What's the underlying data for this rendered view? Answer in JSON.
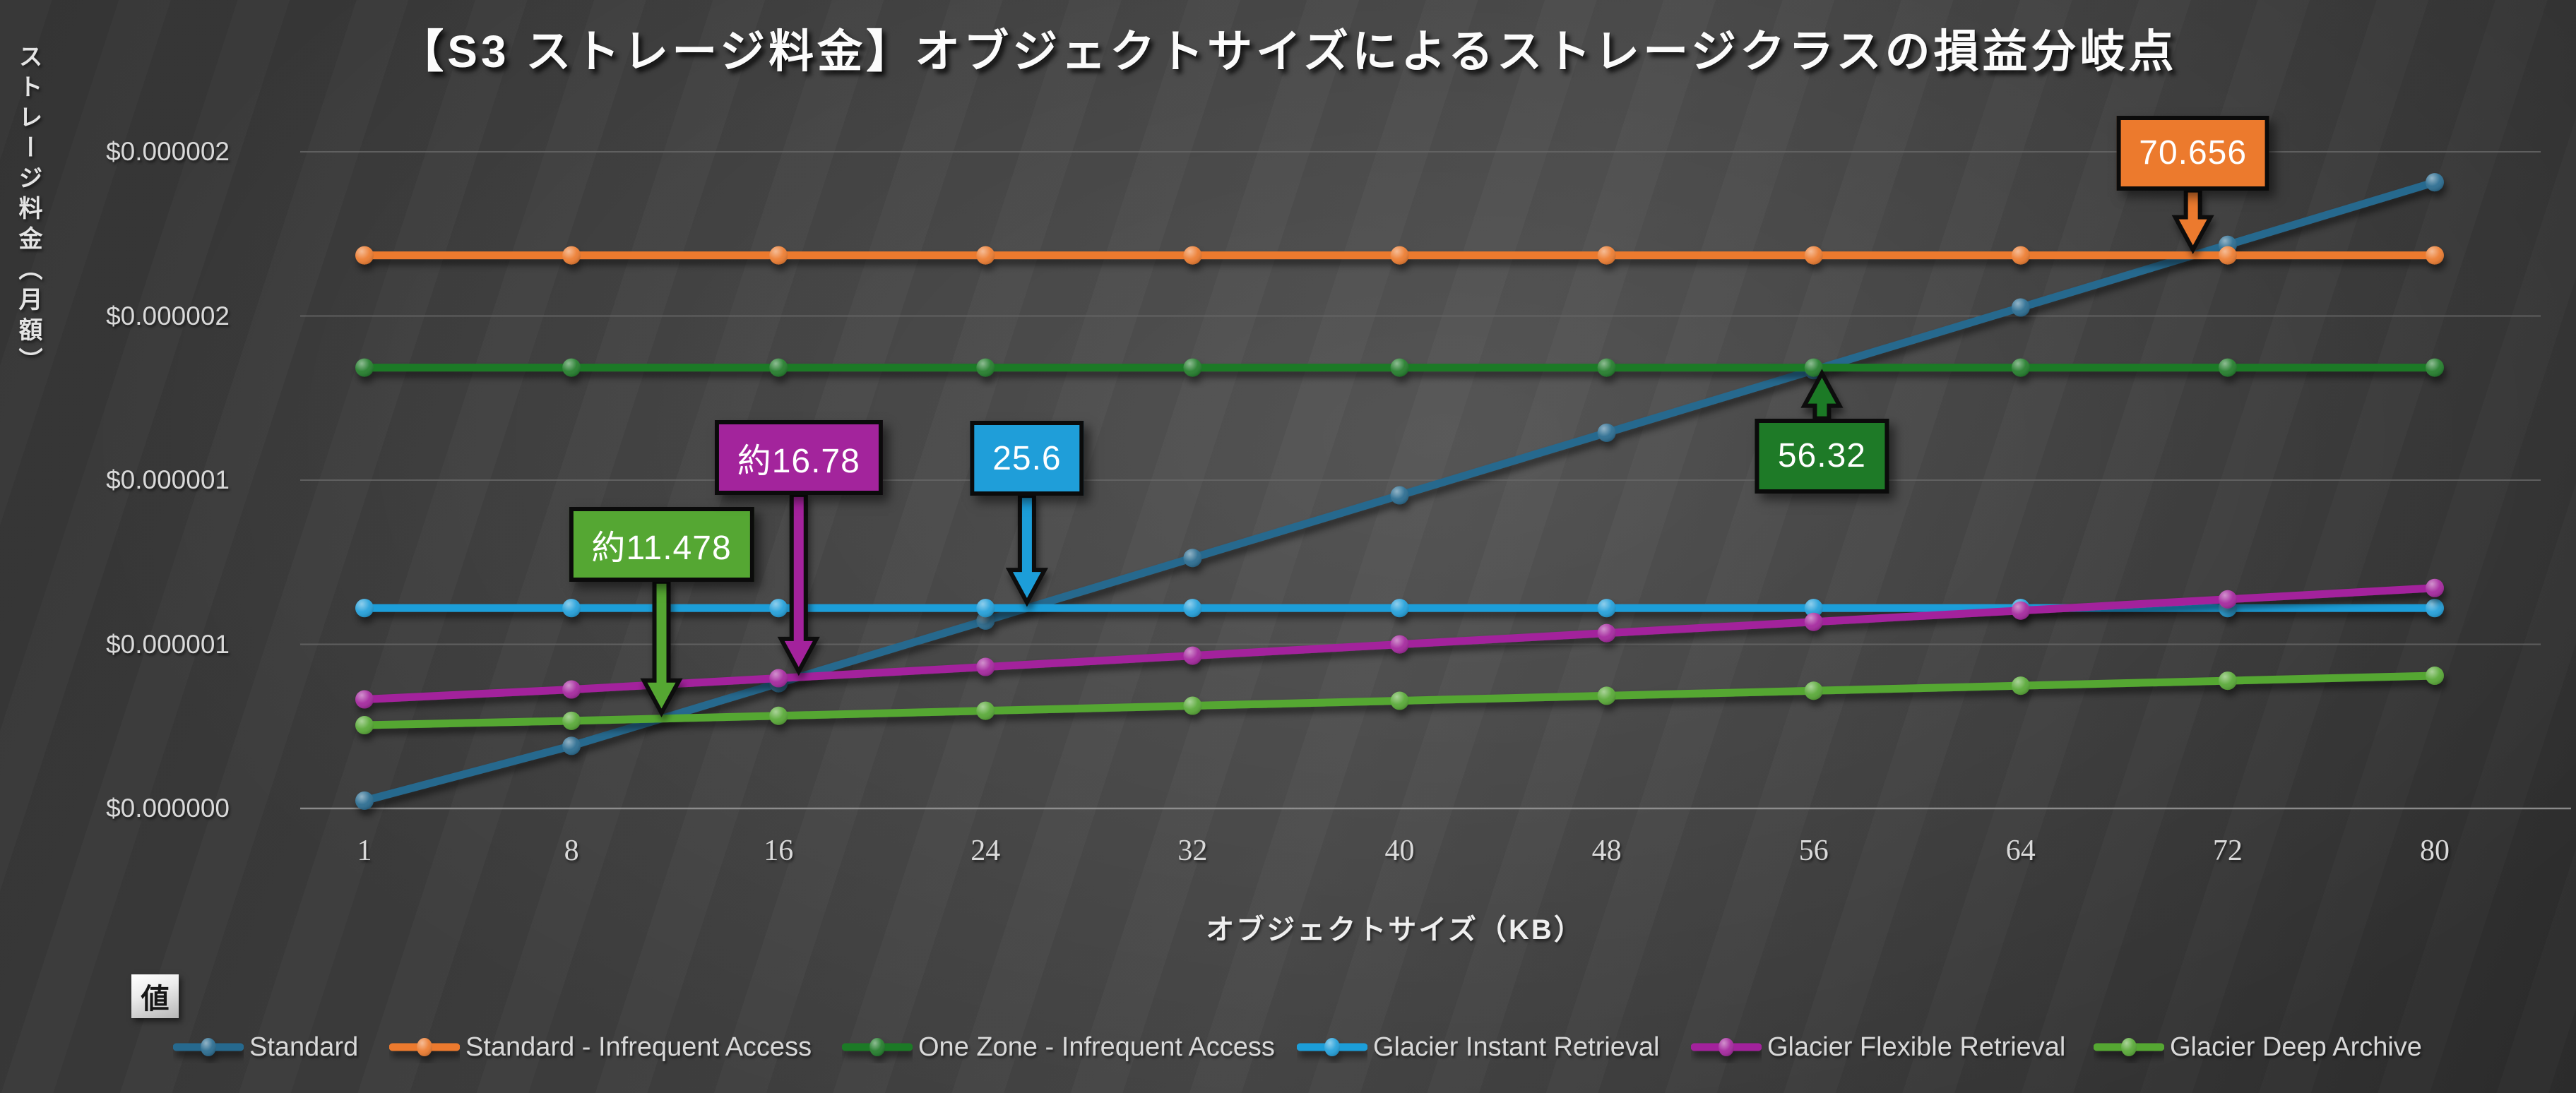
{
  "title": "【S3 ストレージ料金】オブジェクトサイズによるストレージクラスの損益分岐点",
  "y_axis": {
    "title": "ストレージ料金（月額）",
    "ticks": {
      "labels_top_to_bottom": [
        "$0.000002",
        "$0.000002",
        "$0.000001",
        "$0.000001",
        "$0.000000"
      ],
      "values_top_to_bottom": [
        2e-06,
        1.5e-06,
        1e-06,
        5e-07,
        0
      ]
    }
  },
  "x_axis": {
    "title": "オブジェクトサイズ（KB）",
    "tick_labels": [
      "1",
      "8",
      "16",
      "24",
      "32",
      "40",
      "48",
      "56",
      "64",
      "72",
      "80"
    ]
  },
  "value_badge": {
    "label": "値"
  },
  "colors": {
    "background_dark": "#2c2c2c",
    "gridline": "#666666",
    "axis_line": "#9a9a9a",
    "tick_text": "#d9d9d9",
    "title_text": "#fbfbfb"
  },
  "chart_data": {
    "type": "line",
    "title": "【S3 ストレージ料金】オブジェクトサイズによるストレージクラスの損益分岐点",
    "xlabel": "オブジェクトサイズ（KB）",
    "ylabel": "ストレージ料金（月額）",
    "x_categories": [
      1,
      8,
      16,
      24,
      32,
      40,
      48,
      56,
      64,
      72,
      80
    ],
    "ylim": [
      0,
      2e-06
    ],
    "grid": true,
    "legend_position": "bottom",
    "series": [
      {
        "name": "Standard",
        "color": "#26698E",
        "values": [
          2.3842e-08,
          1.9073e-07,
          3.8147e-07,
          5.722e-07,
          7.6294e-07,
          9.5367e-07,
          1.1444e-06,
          1.3351e-06,
          1.5259e-06,
          1.7166e-06,
          1.9073e-06
        ]
      },
      {
        "name": "Standard - Infrequent Access",
        "color": "#EC7A2D",
        "values": [
          1.68457e-06,
          1.68457e-06,
          1.68457e-06,
          1.68457e-06,
          1.68457e-06,
          1.68457e-06,
          1.68457e-06,
          1.68457e-06,
          1.68457e-06,
          1.68457e-06,
          1.68457e-06
        ]
      },
      {
        "name": "One Zone - Infrequent Access",
        "color": "#1E7A27",
        "values": [
          1.34277e-06,
          1.34277e-06,
          1.34277e-06,
          1.34277e-06,
          1.34277e-06,
          1.34277e-06,
          1.34277e-06,
          1.34277e-06,
          1.34277e-06,
          1.34277e-06,
          1.34277e-06
        ]
      },
      {
        "name": "Glacier Instant Retrieval",
        "color": "#1F9ED9",
        "values": [
          6.10352e-07,
          6.10352e-07,
          6.10352e-07,
          6.10352e-07,
          6.10352e-07,
          6.10352e-07,
          6.10352e-07,
          6.10352e-07,
          6.10352e-07,
          6.10352e-07,
          6.10352e-07
        ]
      },
      {
        "name": "Glacier Flexible Retrieval",
        "color": "#A3249C",
        "values": [
          3.3236e-07,
          3.624e-07,
          3.9673e-07,
          4.3106e-07,
          4.6539e-07,
          4.9973e-07,
          5.3406e-07,
          5.6839e-07,
          6.0272e-07,
          6.3705e-07,
          6.7139e-07
        ]
      },
      {
        "name": "Glacier Deep Archive",
        "color": "#55A733",
        "values": [
          2.5368e-07,
          2.6703e-07,
          2.8229e-07,
          2.9755e-07,
          3.1281e-07,
          3.2806e-07,
          3.4332e-07,
          3.5858e-07,
          3.7384e-07,
          3.891e-07,
          4.0436e-07
        ]
      }
    ],
    "annotations": [
      {
        "id": "breakeven-glacier-deep-archive",
        "label": "約11.478",
        "kb": 11.478,
        "cost": 2.7366e-07,
        "color": "#55A733",
        "direction": "down"
      },
      {
        "id": "breakeven-glacier-flexible",
        "label": "約16.78",
        "kb": 16.78,
        "cost": 4.0017e-07,
        "color": "#A3249C",
        "direction": "down"
      },
      {
        "id": "breakeven-glacier-instant",
        "label": "25.6",
        "kb": 25.6,
        "cost": 6.10352e-07,
        "color": "#1F9ED9",
        "direction": "down"
      },
      {
        "id": "breakeven-one-zone-ia",
        "label": "56.32",
        "kb": 56.32,
        "cost": 1.34277e-06,
        "color": "#1E7A27",
        "direction": "up"
      },
      {
        "id": "breakeven-standard-ia",
        "label": "70.656",
        "kb": 70.656,
        "cost": 1.68457e-06,
        "color": "#EC7A2D",
        "direction": "down"
      }
    ]
  }
}
